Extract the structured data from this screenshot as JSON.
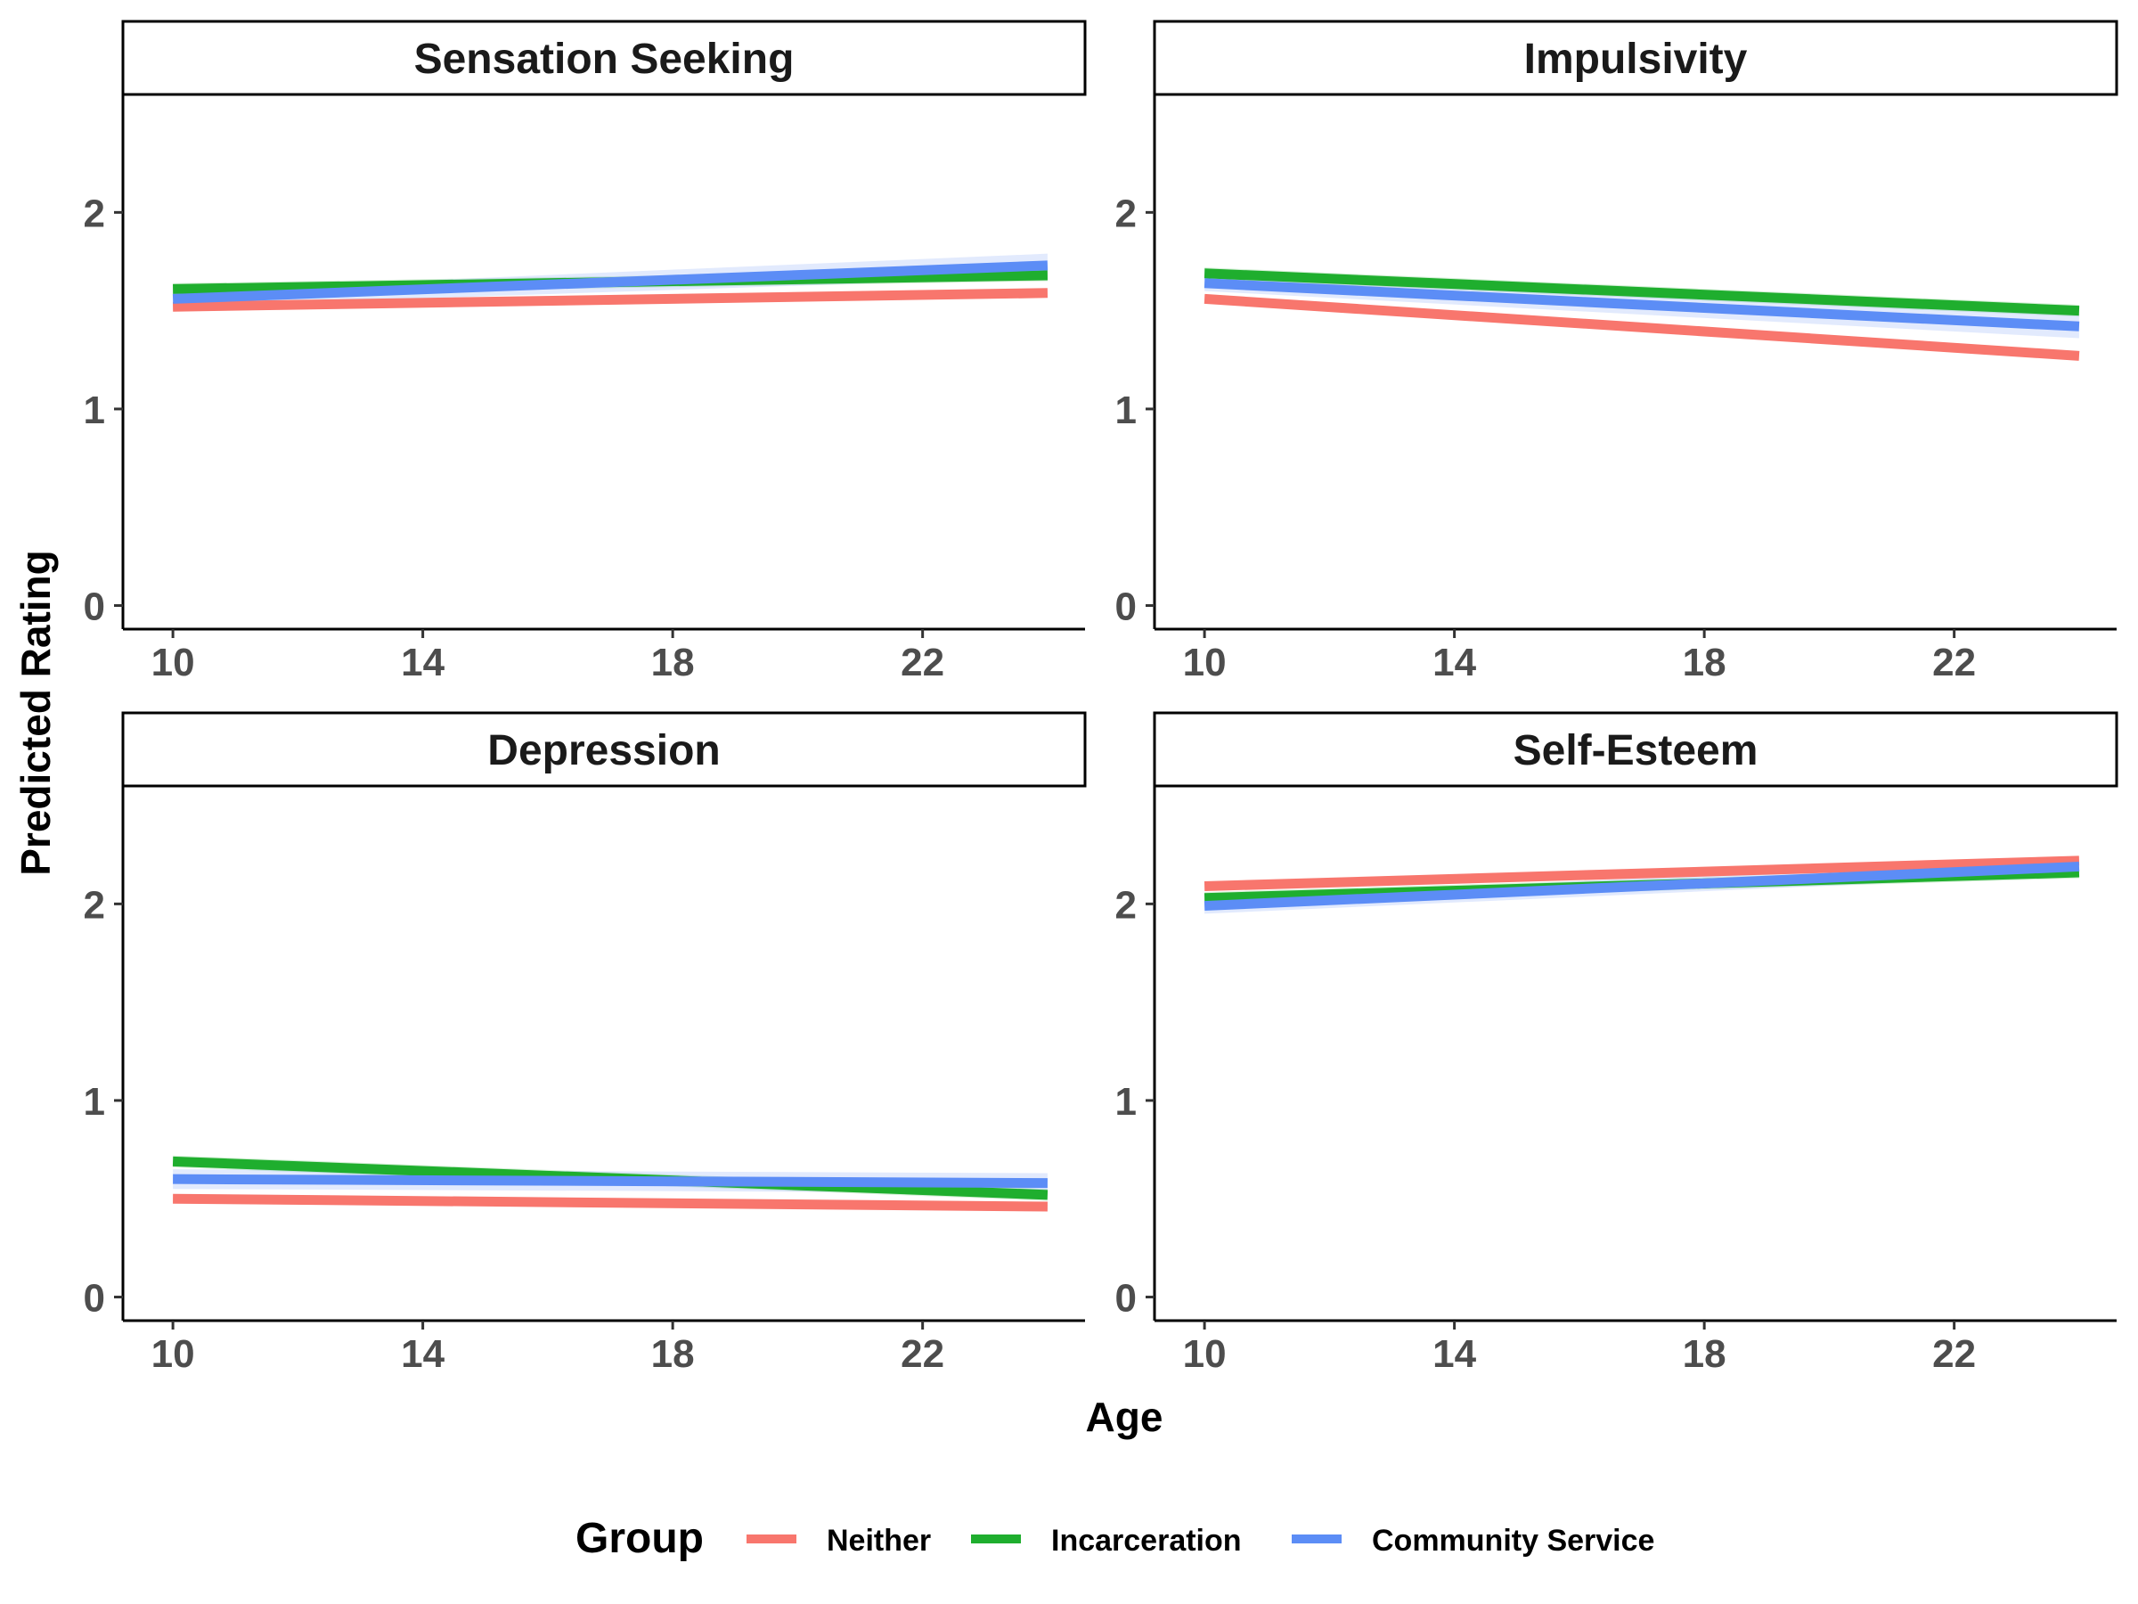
{
  "figure": {
    "ylabel": "Predicted Rating",
    "xlabel": "Age"
  },
  "legend": {
    "title": "Group",
    "position": "bottom",
    "items": [
      {
        "label": "Neither",
        "color": "#F8766D"
      },
      {
        "label": "Incarceration",
        "color": "#1FAE2E"
      },
      {
        "label": "Community Service",
        "color": "#5C8DF6"
      }
    ]
  },
  "chart_data": [
    {
      "type": "line",
      "title": "Sensation Seeking",
      "xlim": [
        9.2,
        24.6
      ],
      "ylim": [
        -0.12,
        2.6
      ],
      "x_ticks": [
        10,
        14,
        18,
        22
      ],
      "y_ticks": [
        0,
        1,
        2
      ],
      "x": [
        10,
        24
      ],
      "series": [
        {
          "name": "Neither",
          "values": [
            1.52,
            1.59
          ],
          "band": [
            0.02,
            0.02
          ]
        },
        {
          "name": "Incarceration",
          "values": [
            1.61,
            1.68
          ],
          "band": [
            0.03,
            0.03
          ]
        },
        {
          "name": "Community Service",
          "values": [
            1.56,
            1.73
          ],
          "band": [
            0.04,
            0.06
          ]
        }
      ]
    },
    {
      "type": "line",
      "title": "Impulsivity",
      "xlim": [
        9.2,
        24.6
      ],
      "ylim": [
        -0.12,
        2.6
      ],
      "x_ticks": [
        10,
        14,
        18,
        22
      ],
      "y_ticks": [
        0,
        1,
        2
      ],
      "x": [
        10,
        24
      ],
      "series": [
        {
          "name": "Neither",
          "values": [
            1.56,
            1.27
          ],
          "band": [
            0.02,
            0.02
          ]
        },
        {
          "name": "Incarceration",
          "values": [
            1.69,
            1.5
          ],
          "band": [
            0.03,
            0.03
          ]
        },
        {
          "name": "Community Service",
          "values": [
            1.64,
            1.42
          ],
          "band": [
            0.04,
            0.06
          ]
        }
      ]
    },
    {
      "type": "line",
      "title": "Depression",
      "xlim": [
        9.2,
        24.6
      ],
      "ylim": [
        -0.12,
        2.6
      ],
      "x_ticks": [
        10,
        14,
        18,
        22
      ],
      "y_ticks": [
        0,
        1,
        2
      ],
      "x": [
        10,
        24
      ],
      "series": [
        {
          "name": "Neither",
          "values": [
            0.5,
            0.46
          ],
          "band": [
            0.02,
            0.02
          ]
        },
        {
          "name": "Incarceration",
          "values": [
            0.69,
            0.52
          ],
          "band": [
            0.03,
            0.03
          ]
        },
        {
          "name": "Community Service",
          "values": [
            0.6,
            0.58
          ],
          "band": [
            0.05,
            0.05
          ]
        }
      ]
    },
    {
      "type": "line",
      "title": "Self-Esteem",
      "xlim": [
        9.2,
        24.6
      ],
      "ylim": [
        -0.12,
        2.6
      ],
      "x_ticks": [
        10,
        14,
        18,
        22
      ],
      "y_ticks": [
        0,
        1,
        2
      ],
      "x": [
        10,
        24
      ],
      "series": [
        {
          "name": "Neither",
          "values": [
            2.09,
            2.22
          ],
          "band": [
            0.02,
            0.02
          ]
        },
        {
          "name": "Incarceration",
          "values": [
            2.03,
            2.16
          ],
          "band": [
            0.03,
            0.03
          ]
        },
        {
          "name": "Community Service",
          "values": [
            1.99,
            2.19
          ],
          "band": [
            0.04,
            0.04
          ]
        }
      ]
    }
  ]
}
